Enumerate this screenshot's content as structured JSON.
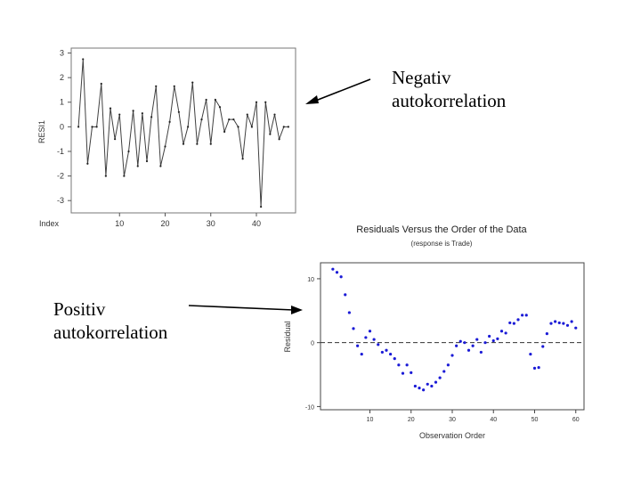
{
  "annotations": {
    "negative": [
      "Negativ",
      "autokorrelation"
    ],
    "positive": [
      "Positiv",
      "autokorrelation"
    ]
  },
  "colors": {
    "line": "#404040",
    "dot": "#1b1bd6",
    "axis": "#555555",
    "frame": "#444444"
  },
  "chart_data": [
    {
      "type": "line",
      "title": "",
      "xlabel": "Index",
      "ylabel": "RESI1",
      "xlim": [
        0,
        48
      ],
      "ylim": [
        -3.5,
        3.2
      ],
      "yticks": [
        3,
        2,
        1,
        0,
        -1,
        -2,
        -3
      ],
      "xticks": [
        10,
        20,
        30,
        40
      ],
      "x": [
        1,
        2,
        3,
        4,
        5,
        6,
        7,
        8,
        9,
        10,
        11,
        12,
        13,
        14,
        15,
        16,
        17,
        18,
        19,
        20,
        21,
        22,
        23,
        24,
        25,
        26,
        27,
        28,
        29,
        30,
        31,
        32,
        33,
        34,
        35,
        36,
        37,
        38,
        39,
        40,
        41,
        42,
        43,
        44,
        45,
        46,
        47
      ],
      "y": [
        0,
        2.75,
        -1.5,
        0,
        0,
        1.75,
        -2,
        0.75,
        -0.5,
        0.5,
        -2,
        -1,
        0.65,
        -1.6,
        0.55,
        -1.4,
        0.4,
        1.65,
        -1.6,
        -0.8,
        0.2,
        1.65,
        0.6,
        -0.7,
        0,
        1.8,
        -0.7,
        0.3,
        1.1,
        -0.7,
        1.1,
        0.8,
        -0.2,
        0.3,
        0.3,
        0,
        -1.3,
        0.5,
        0,
        1,
        -3.25,
        1,
        -0.3,
        0.5,
        -0.5,
        0,
        0
      ]
    },
    {
      "type": "scatter",
      "title": "Residuals Versus the Order of the Data",
      "subtitle": "(response is Trade)",
      "xlabel": "Observation Order",
      "ylabel": "Residual",
      "xlim": [
        -2,
        62
      ],
      "ylim": [
        -10.5,
        12.5
      ],
      "yticks": [
        10,
        0,
        -10
      ],
      "xticks": [
        10,
        20,
        30,
        40,
        50,
        60
      ],
      "reference_line": 0,
      "x": [
        1,
        2,
        3,
        4,
        5,
        6,
        7,
        8,
        9,
        10,
        11,
        12,
        13,
        14,
        15,
        16,
        17,
        18,
        19,
        20,
        21,
        22,
        23,
        24,
        25,
        26,
        27,
        28,
        29,
        30,
        31,
        32,
        33,
        34,
        35,
        36,
        37,
        38,
        39,
        40,
        41,
        42,
        43,
        44,
        45,
        46,
        47,
        48,
        49,
        50,
        51,
        52,
        53,
        54,
        55,
        56,
        57,
        58,
        59,
        60
      ],
      "y": [
        11.5,
        11,
        10.3,
        7.5,
        4.7,
        2.2,
        -0.5,
        -1.8,
        0.8,
        1.8,
        0.5,
        -0.3,
        -1.5,
        -1.2,
        -1.8,
        -2.5,
        -3.5,
        -4.8,
        -3.5,
        -4.7,
        -6.8,
        -7.1,
        -7.4,
        -6.5,
        -6.8,
        -6.2,
        -5.5,
        -4.5,
        -3.5,
        -2,
        -0.5,
        0.2,
        0,
        -1.2,
        -0.5,
        0.5,
        -1.5,
        0,
        1,
        0.3,
        0.6,
        1.8,
        1.5,
        3.1,
        3,
        3.6,
        4.3,
        4.3,
        -1.8,
        -4,
        -3.9,
        -0.6,
        1.4,
        3,
        3.3,
        3.1,
        3,
        2.7,
        3.3,
        2.3
      ]
    }
  ]
}
